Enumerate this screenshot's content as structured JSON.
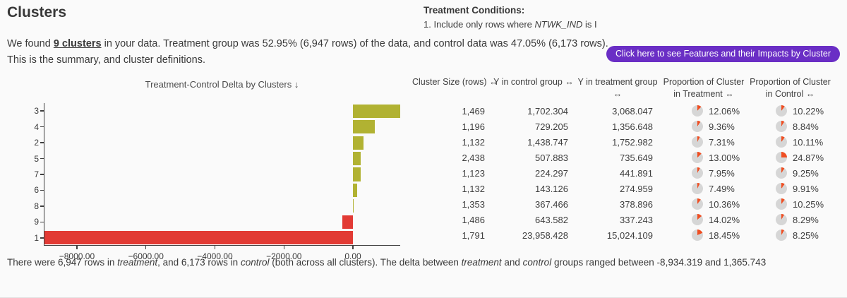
{
  "header": {
    "title": "Clusters",
    "conditions_title": "Treatment Conditions:",
    "condition_segments": [
      {
        "t": "1. Include only rows where "
      },
      {
        "t": "NTWK_IND",
        "style": "italic"
      },
      {
        "t": " is I"
      }
    ]
  },
  "summary": {
    "line1": [
      {
        "t": "We found "
      },
      {
        "t": "9 clusters",
        "style": "bold-underline"
      },
      {
        "t": " in your data. Treatment group was 52.95% (6,947 rows) of the data, and control data was 47.05% (6,173 rows)."
      }
    ],
    "line2": "This is the summary, and cluster definitions."
  },
  "buttons": {
    "features_impacts": "Click here to see Features and their Impacts by Cluster"
  },
  "chart_data": {
    "type": "bar",
    "orientation": "horizontal",
    "title": "Treatment-Control Delta by Clusters ↓",
    "categories": [
      "3",
      "4",
      "2",
      "5",
      "7",
      "6",
      "8",
      "9",
      "1"
    ],
    "values": [
      1365.743,
      627.443,
      314.235,
      227.766,
      217.594,
      131.833,
      11.43,
      -306.339,
      -8934.319
    ],
    "xlabel": "",
    "ylabel": "",
    "xlim": [
      -8940,
      1390
    ],
    "x_ticks": [
      -8000,
      -6000,
      -4000,
      -2000,
      0
    ],
    "x_tick_labels": [
      "−8000.00",
      "−6000.00",
      "−4000.00",
      "−2000.00",
      "0.00"
    ],
    "positive_color": "#b1b232",
    "negative_color": "#e23a34",
    "grid": false,
    "legend": false
  },
  "table": {
    "columns": [
      {
        "line1": "Cluster Size (rows) ↔",
        "line2": ""
      },
      {
        "line1": "Y in control group ↔",
        "line2": ""
      },
      {
        "line1": "Y in treatment group",
        "line2": "↔"
      },
      {
        "line1": "Proportion of Cluster",
        "line2": "in Treatment ↔"
      },
      {
        "line1": "Proportion of Cluster",
        "line2": "in Control ↔"
      }
    ],
    "pie_colors": {
      "wedge": "#ef4e22",
      "rest": "#d6d6d6"
    },
    "rows": [
      {
        "size": "1,469",
        "y_control": "1,702.304",
        "y_treatment": "3,068.047",
        "prop_treatment": "12.06%",
        "prop_control": "10.22%"
      },
      {
        "size": "1,196",
        "y_control": "729.205",
        "y_treatment": "1,356.648",
        "prop_treatment": "9.36%",
        "prop_control": "8.84%"
      },
      {
        "size": "1,132",
        "y_control": "1,438.747",
        "y_treatment": "1,752.982",
        "prop_treatment": "7.31%",
        "prop_control": "10.11%"
      },
      {
        "size": "2,438",
        "y_control": "507.883",
        "y_treatment": "735.649",
        "prop_treatment": "13.00%",
        "prop_control": "24.87%"
      },
      {
        "size": "1,123",
        "y_control": "224.297",
        "y_treatment": "441.891",
        "prop_treatment": "7.95%",
        "prop_control": "9.25%"
      },
      {
        "size": "1,132",
        "y_control": "143.126",
        "y_treatment": "274.959",
        "prop_treatment": "7.49%",
        "prop_control": "9.91%"
      },
      {
        "size": "1,353",
        "y_control": "367.466",
        "y_treatment": "378.896",
        "prop_treatment": "10.36%",
        "prop_control": "10.25%"
      },
      {
        "size": "1,486",
        "y_control": "643.582",
        "y_treatment": "337.243",
        "prop_treatment": "14.02%",
        "prop_control": "8.29%"
      },
      {
        "size": "1,791",
        "y_control": "23,958.428",
        "y_treatment": "15,024.109",
        "prop_treatment": "18.45%",
        "prop_control": "8.25%"
      }
    ]
  },
  "footer": {
    "segments": [
      {
        "t": "There were 6,947 rows in "
      },
      {
        "t": "treatment",
        "style": "italic"
      },
      {
        "t": ", and 6,173 rows in "
      },
      {
        "t": "control",
        "style": "italic"
      },
      {
        "t": " (both across all clusters). The delta between "
      },
      {
        "t": "treatment",
        "style": "italic"
      },
      {
        "t": " and "
      },
      {
        "t": "control",
        "style": "italic"
      },
      {
        "t": " groups ranged between -8,934.319 and 1,365.743"
      }
    ]
  },
  "colors": {
    "accent_button": "#6a2ec5",
    "positive_bar": "#b1b232",
    "negative_bar": "#e23a34",
    "pie_wedge": "#ef4e22",
    "pie_rest": "#d6d6d6",
    "background": "#fafafa"
  }
}
